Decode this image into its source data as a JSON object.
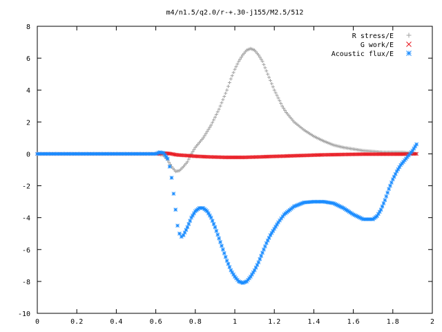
{
  "chart_data": {
    "type": "scatter",
    "title": "m4/n1.5/q2.0/r-+.30-j155/M2.5/512",
    "xlabel": "",
    "ylabel": "",
    "xlim": [
      0,
      2
    ],
    "ylim": [
      -10,
      8
    ],
    "x_ticks": [
      0,
      0.2,
      0.4,
      0.6,
      0.8,
      1,
      1.2,
      1.4,
      1.6,
      1.8,
      2
    ],
    "x_tick_labels": [
      "0",
      "0.2",
      "0.4",
      "0.6",
      "0.8",
      "1",
      "1.2",
      "1.4",
      "1.6",
      "1.8",
      "2"
    ],
    "y_ticks": [
      -10,
      -8,
      -6,
      -4,
      -2,
      0,
      2,
      4,
      6,
      8
    ],
    "y_tick_labels": [
      "-10",
      "-8",
      "-6",
      "-4",
      "-2",
      "0",
      "2",
      "4",
      "6",
      "8"
    ],
    "grid": false,
    "legend_position": "top-right",
    "series": [
      {
        "name": "R stress/E",
        "marker": "plus",
        "color": "#a0a0a0",
        "x": [
          0.0,
          0.1,
          0.2,
          0.3,
          0.4,
          0.5,
          0.6,
          0.64,
          0.66,
          0.68,
          0.7,
          0.72,
          0.74,
          0.76,
          0.78,
          0.8,
          0.82,
          0.84,
          0.86,
          0.88,
          0.9,
          0.92,
          0.94,
          0.96,
          0.98,
          1.0,
          1.02,
          1.04,
          1.06,
          1.08,
          1.1,
          1.12,
          1.14,
          1.16,
          1.18,
          1.2,
          1.22,
          1.24,
          1.26,
          1.28,
          1.3,
          1.35,
          1.4,
          1.45,
          1.5,
          1.55,
          1.6,
          1.65,
          1.7,
          1.75,
          1.8,
          1.85,
          1.9,
          1.92
        ],
        "y": [
          0.0,
          0.0,
          0.0,
          0.0,
          0.0,
          0.0,
          0.0,
          -0.1,
          -0.4,
          -0.8,
          -1.1,
          -1.05,
          -0.8,
          -0.5,
          0.0,
          0.4,
          0.7,
          1.0,
          1.4,
          1.8,
          2.3,
          2.8,
          3.4,
          4.0,
          4.7,
          5.3,
          5.8,
          6.2,
          6.5,
          6.6,
          6.5,
          6.2,
          5.8,
          5.2,
          4.6,
          4.0,
          3.5,
          3.0,
          2.6,
          2.3,
          2.0,
          1.5,
          1.1,
          0.8,
          0.55,
          0.4,
          0.3,
          0.2,
          0.15,
          0.1,
          0.1,
          0.1,
          0.05,
          0.0
        ]
      },
      {
        "name": "G work/E",
        "marker": "cross",
        "color": "#e8141c",
        "x": [
          0.0,
          0.1,
          0.2,
          0.3,
          0.4,
          0.5,
          0.6,
          0.62,
          0.64,
          0.66,
          0.68,
          0.7,
          0.72,
          0.75,
          0.8,
          0.85,
          0.9,
          0.95,
          1.0,
          1.05,
          1.1,
          1.15,
          1.2,
          1.25,
          1.3,
          1.35,
          1.4,
          1.45,
          1.5,
          1.55,
          1.6,
          1.65,
          1.7,
          1.75,
          1.8,
          1.85,
          1.9,
          1.92
        ],
        "y": [
          0.0,
          0.0,
          0.0,
          0.0,
          0.0,
          0.0,
          0.0,
          0.02,
          0.05,
          0.03,
          0.0,
          -0.05,
          -0.08,
          -0.1,
          -0.15,
          -0.18,
          -0.2,
          -0.22,
          -0.22,
          -0.22,
          -0.2,
          -0.18,
          -0.16,
          -0.14,
          -0.12,
          -0.1,
          -0.08,
          -0.06,
          -0.05,
          -0.04,
          -0.03,
          -0.02,
          -0.02,
          -0.02,
          -0.02,
          -0.02,
          0.0,
          0.0
        ]
      },
      {
        "name": "Acoustic flux/E",
        "marker": "star",
        "color": "#1a8cff",
        "x": [
          0.0,
          0.1,
          0.2,
          0.3,
          0.4,
          0.5,
          0.6,
          0.62,
          0.64,
          0.66,
          0.67,
          0.68,
          0.69,
          0.7,
          0.71,
          0.72,
          0.73,
          0.74,
          0.76,
          0.78,
          0.8,
          0.82,
          0.84,
          0.86,
          0.88,
          0.9,
          0.92,
          0.94,
          0.96,
          0.98,
          1.0,
          1.02,
          1.04,
          1.06,
          1.08,
          1.1,
          1.12,
          1.14,
          1.16,
          1.18,
          1.2,
          1.22,
          1.25,
          1.3,
          1.35,
          1.4,
          1.45,
          1.5,
          1.55,
          1.6,
          1.65,
          1.7,
          1.72,
          1.74,
          1.76,
          1.78,
          1.8,
          1.82,
          1.84,
          1.86,
          1.88,
          1.9,
          1.92
        ],
        "y": [
          0.0,
          0.0,
          0.0,
          0.0,
          0.0,
          0.0,
          0.0,
          0.1,
          0.05,
          -0.3,
          -0.8,
          -1.5,
          -2.5,
          -3.5,
          -4.5,
          -5.0,
          -5.2,
          -5.1,
          -4.6,
          -4.0,
          -3.6,
          -3.4,
          -3.4,
          -3.6,
          -4.0,
          -4.6,
          -5.3,
          -6.0,
          -6.7,
          -7.3,
          -7.7,
          -8.0,
          -8.1,
          -8.0,
          -7.7,
          -7.3,
          -6.8,
          -6.2,
          -5.6,
          -5.1,
          -4.7,
          -4.3,
          -3.8,
          -3.3,
          -3.05,
          -3.0,
          -3.0,
          -3.1,
          -3.4,
          -3.8,
          -4.1,
          -4.1,
          -3.9,
          -3.5,
          -2.9,
          -2.2,
          -1.6,
          -1.1,
          -0.7,
          -0.4,
          -0.1,
          0.2,
          0.6
        ]
      }
    ]
  }
}
